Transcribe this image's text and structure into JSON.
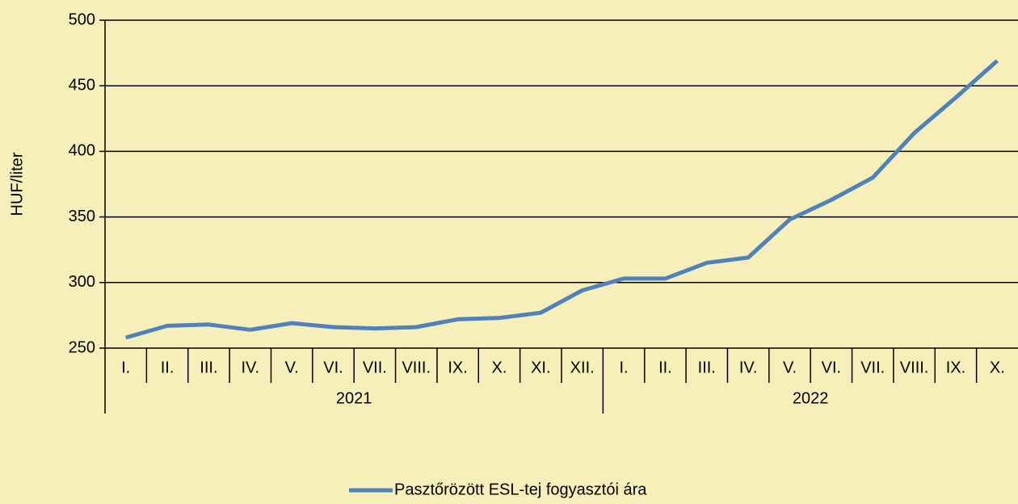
{
  "chart_data": {
    "type": "line",
    "y_axis_label": "HUF/liter",
    "category_groups": [
      {
        "name": "2021",
        "categories": [
          "I.",
          "II.",
          "III.",
          "IV.",
          "V.",
          "VI.",
          "VII.",
          "VIII.",
          "IX.",
          "X.",
          "XI.",
          "XII."
        ]
      },
      {
        "name": "2022",
        "categories": [
          "I.",
          "II.",
          "III.",
          "IV.",
          "V.",
          "VI.",
          "VII.",
          "VIII.",
          "IX.",
          "X."
        ]
      }
    ],
    "series": [
      {
        "name": "Pasztőrözött ESL-tej fogyasztói ára",
        "color": "#4f81bd",
        "values": [
          258,
          267,
          268,
          264,
          269,
          266,
          265,
          266,
          272,
          273,
          277,
          294,
          303,
          303,
          315,
          319,
          348,
          363,
          380,
          414,
          441,
          469
        ]
      }
    ],
    "ylim": [
      250,
      500
    ],
    "yticks": [
      250,
      300,
      350,
      400,
      450,
      500
    ],
    "grid": true,
    "legend": "bottom"
  }
}
